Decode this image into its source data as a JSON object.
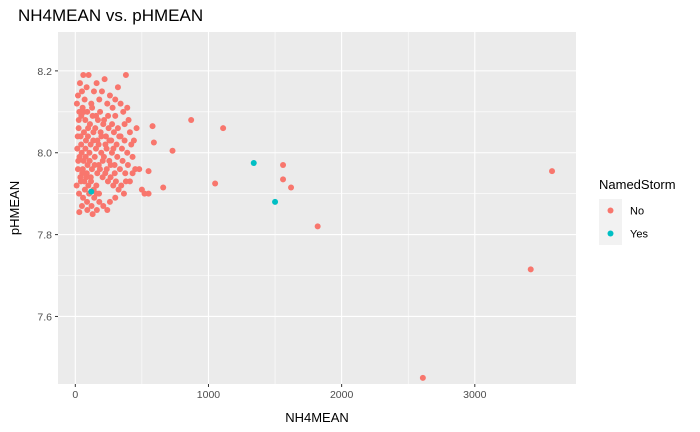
{
  "chart_data": {
    "type": "scatter",
    "title": "NH4MEAN vs. pHMEAN",
    "xlabel": "NH4MEAN",
    "ylabel": "pHMEAN",
    "xlim": [
      -130,
      3760
    ],
    "ylim": [
      7.435,
      8.295
    ],
    "x_ticks": [
      0,
      1000,
      2000,
      3000
    ],
    "y_ticks": [
      7.6,
      7.8,
      8.0,
      8.2
    ],
    "x_tick_labels": [
      "0",
      "1000",
      "2000",
      "3000"
    ],
    "y_tick_labels": [
      "7.6",
      "7.8",
      "8.0",
      "8.2"
    ],
    "grid": true,
    "legend": {
      "title": "NamedStorm",
      "position": "right",
      "entries": [
        {
          "label": "No",
          "color": "#F8766D"
        },
        {
          "label": "Yes",
          "color": "#00BFC4"
        }
      ]
    },
    "series": [
      {
        "name": "No",
        "color": "#F8766D",
        "points": [
          [
            20,
            8.14
          ],
          [
            35,
            8.17
          ],
          [
            50,
            8.15
          ],
          [
            60,
            8.19
          ],
          [
            70,
            8.13
          ],
          [
            85,
            8.16
          ],
          [
            100,
            8.19
          ],
          [
            120,
            8.12
          ],
          [
            140,
            8.15
          ],
          [
            160,
            8.17
          ],
          [
            180,
            8.13
          ],
          [
            200,
            8.15
          ],
          [
            220,
            8.18
          ],
          [
            240,
            8.12
          ],
          [
            260,
            8.14
          ],
          [
            280,
            8.11
          ],
          [
            300,
            8.13
          ],
          [
            320,
            8.16
          ],
          [
            340,
            8.12
          ],
          [
            360,
            8.1
          ],
          [
            30,
            8.1
          ],
          [
            45,
            8.09
          ],
          [
            55,
            8.11
          ],
          [
            75,
            8.08
          ],
          [
            90,
            8.1
          ],
          [
            110,
            8.07
          ],
          [
            130,
            8.09
          ],
          [
            150,
            8.06
          ],
          [
            170,
            8.08
          ],
          [
            190,
            8.05
          ],
          [
            210,
            8.07
          ],
          [
            230,
            8.04
          ],
          [
            250,
            8.06
          ],
          [
            270,
            8.03
          ],
          [
            290,
            8.05
          ],
          [
            310,
            8.02
          ],
          [
            330,
            8.04
          ],
          [
            350,
            8.01
          ],
          [
            370,
            8.03
          ],
          [
            390,
            8.0
          ],
          [
            25,
            8.06
          ],
          [
            40,
            8.04
          ],
          [
            65,
            8.05
          ],
          [
            80,
            8.03
          ],
          [
            95,
            8.04
          ],
          [
            115,
            8.02
          ],
          [
            135,
            8.03
          ],
          [
            155,
            8.01
          ],
          [
            175,
            8.02
          ],
          [
            195,
            8.0
          ],
          [
            215,
            7.99
          ],
          [
            235,
            8.01
          ],
          [
            255,
            7.98
          ],
          [
            275,
            8.0
          ],
          [
            295,
            7.97
          ],
          [
            315,
            7.99
          ],
          [
            335,
            7.96
          ],
          [
            355,
            7.98
          ],
          [
            375,
            7.95
          ],
          [
            395,
            7.97
          ],
          [
            15,
            8.01
          ],
          [
            32,
            7.99
          ],
          [
            48,
            8.0
          ],
          [
            62,
            7.98
          ],
          [
            78,
            7.99
          ],
          [
            92,
            7.97
          ],
          [
            108,
            7.98
          ],
          [
            125,
            7.96
          ],
          [
            145,
            7.97
          ],
          [
            165,
            7.95
          ],
          [
            185,
            7.96
          ],
          [
            205,
            7.94
          ],
          [
            225,
            7.95
          ],
          [
            245,
            7.93
          ],
          [
            265,
            7.94
          ],
          [
            285,
            7.92
          ],
          [
            305,
            7.93
          ],
          [
            325,
            7.91
          ],
          [
            345,
            7.92
          ],
          [
            365,
            7.9
          ],
          [
            20,
            7.96
          ],
          [
            38,
            7.94
          ],
          [
            52,
            7.95
          ],
          [
            68,
            7.93
          ],
          [
            82,
            7.94
          ],
          [
            98,
            7.92
          ],
          [
            118,
            7.93
          ],
          [
            138,
            7.91
          ],
          [
            158,
            7.92
          ],
          [
            178,
            7.9
          ],
          [
            10,
            7.92
          ],
          [
            28,
            7.9
          ],
          [
            42,
            7.93
          ],
          [
            58,
            7.89
          ],
          [
            72,
            7.91
          ],
          [
            88,
            7.88
          ],
          [
            104,
            7.9
          ],
          [
            122,
            7.87
          ],
          [
            142,
            7.89
          ],
          [
            162,
            7.86
          ],
          [
            30,
            7.855
          ],
          [
            130,
            7.85
          ],
          [
            210,
            7.87
          ],
          [
            240,
            7.86
          ],
          [
            180,
            7.88
          ],
          [
            300,
            7.89
          ],
          [
            50,
            7.87
          ],
          [
            90,
            7.86
          ],
          [
            160,
            7.9
          ],
          [
            260,
            7.88
          ],
          [
            12,
            8.12
          ],
          [
            18,
            8.04
          ],
          [
            22,
            7.98
          ],
          [
            26,
            8.08
          ],
          [
            44,
            8.02
          ],
          [
            56,
            7.96
          ],
          [
            66,
            8.1
          ],
          [
            76,
            8.01
          ],
          [
            86,
            7.95
          ],
          [
            96,
            8.06
          ],
          [
            106,
            8.0
          ],
          [
            116,
            7.94
          ],
          [
            126,
            8.11
          ],
          [
            136,
            8.05
          ],
          [
            146,
            7.99
          ],
          [
            156,
            8.09
          ],
          [
            166,
            8.03
          ],
          [
            176,
            7.97
          ],
          [
            186,
            8.1
          ],
          [
            196,
            8.04
          ],
          [
            206,
            7.98
          ],
          [
            216,
            8.08
          ],
          [
            226,
            8.02
          ],
          [
            236,
            7.96
          ],
          [
            246,
            8.09
          ],
          [
            256,
            8.03
          ],
          [
            266,
            7.97
          ],
          [
            276,
            8.07
          ],
          [
            286,
            8.01
          ],
          [
            296,
            7.95
          ],
          [
            400,
            8.08
          ],
          [
            410,
            8.05
          ],
          [
            420,
            8.02
          ],
          [
            430,
            7.99
          ],
          [
            440,
            8.03
          ],
          [
            450,
            7.96
          ],
          [
            460,
            8.06
          ],
          [
            380,
            7.93
          ],
          [
            390,
            8.11
          ],
          [
            370,
            8.07
          ],
          [
            380,
            8.19
          ],
          [
            300,
            8.09
          ],
          [
            320,
            8.06
          ],
          [
            340,
            8.04
          ],
          [
            410,
            7.93
          ],
          [
            430,
            7.95
          ],
          [
            480,
            7.96
          ],
          [
            500,
            7.91
          ],
          [
            520,
            7.9
          ],
          [
            550,
            7.955
          ],
          [
            580,
            8.065
          ],
          [
            590,
            8.025
          ],
          [
            550,
            7.9
          ],
          [
            660,
            7.915
          ],
          [
            730,
            8.005
          ],
          [
            870,
            8.08
          ],
          [
            1050,
            7.925
          ],
          [
            1110,
            8.06
          ],
          [
            1560,
            7.97
          ],
          [
            1560,
            7.935
          ],
          [
            1620,
            7.915
          ],
          [
            1820,
            7.82
          ],
          [
            2610,
            7.45
          ],
          [
            3420,
            7.715
          ],
          [
            3580,
            7.955
          ]
        ]
      },
      {
        "name": "Yes",
        "color": "#00BFC4",
        "points": [
          [
            1340,
            7.975
          ],
          [
            1500,
            7.88
          ],
          [
            120,
            7.905
          ]
        ]
      }
    ]
  }
}
